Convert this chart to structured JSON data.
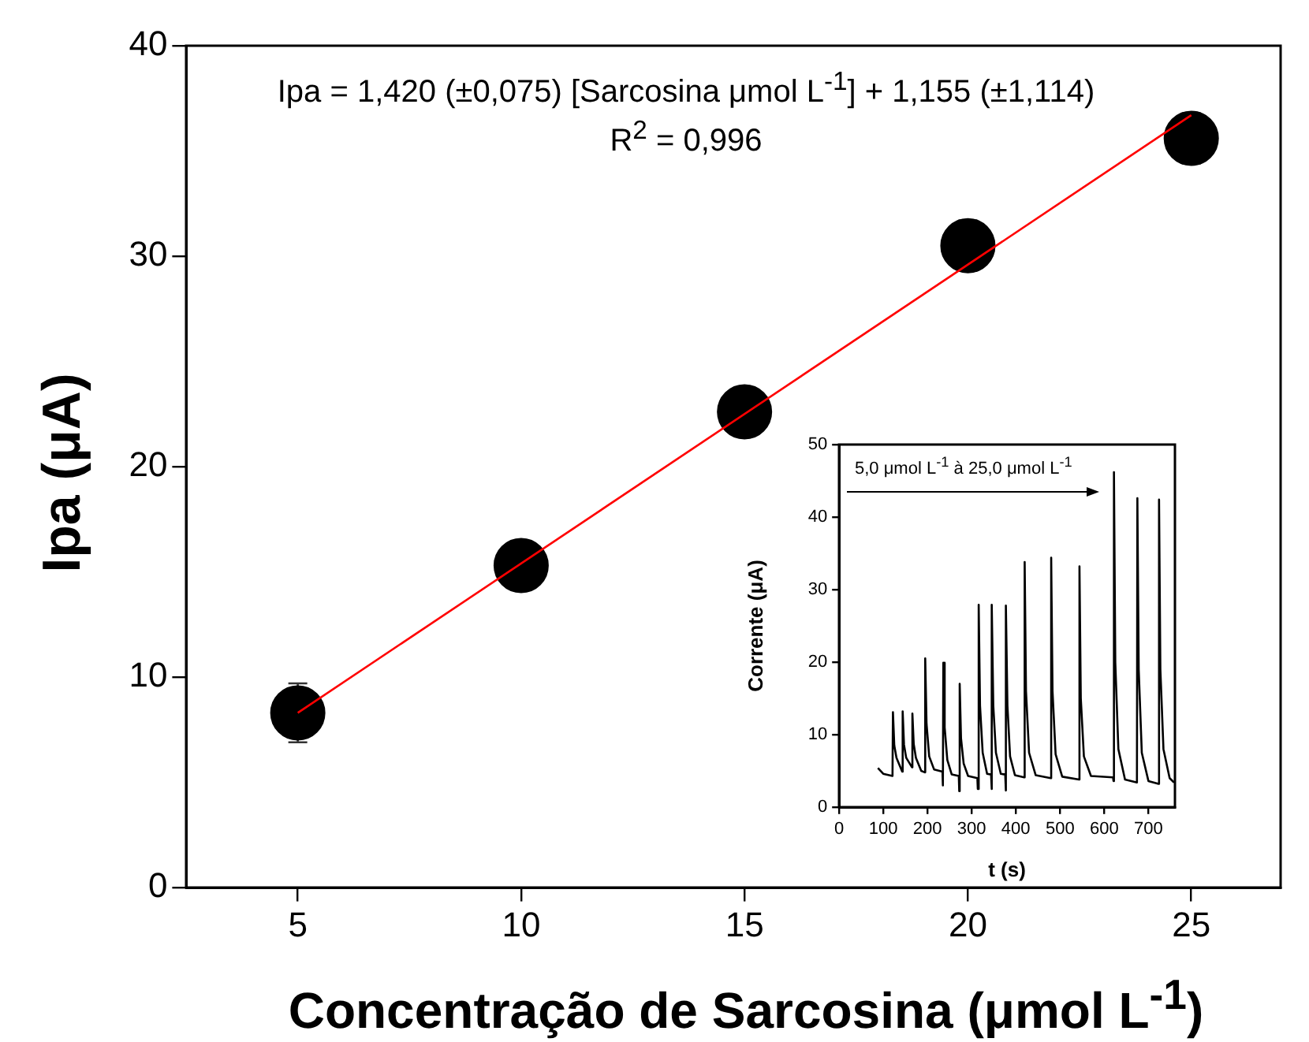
{
  "chart_data": [
    {
      "type": "scatter",
      "xlabel": "Concentração de Sarcosina (μmol L$^{-1}$)",
      "ylabel": "Ipa (μA)",
      "annotations": [
        "Ipa = 1,420 (±0,075) [Sarcosina μmol L$^{-1}$] + 1,155 (±1,114)",
        "R$^{2}$ = 0,996"
      ],
      "xlim": [
        2.5,
        27
      ],
      "ylim": [
        0,
        40
      ],
      "xticks": [
        5,
        10,
        15,
        20,
        25
      ],
      "yticks": [
        0,
        10,
        20,
        30,
        40
      ],
      "series": [
        {
          "color": "#000000",
          "marker": "circle",
          "x": [
            5,
            10,
            15,
            20,
            25
          ],
          "values": [
            8.3,
            15.3,
            22.6,
            30.5,
            35.6
          ],
          "errors": [
            1.4,
            null,
            0.8,
            1.2,
            1.2
          ]
        },
        {
          "type": "line",
          "color": "#ff0000",
          "x": [
            5,
            25
          ],
          "values": [
            8.3,
            36.7
          ]
        }
      ]
    },
    {
      "type": "line",
      "xlabel": "t (s)",
      "ylabel": "Corrente (μA)",
      "annotations": [
        "5,0 μmol L$^{-1}$ à 25,0 μmol L$^{-1}$"
      ],
      "xlim": [
        0,
        760
      ],
      "ylim": [
        0,
        50
      ],
      "xticks": [
        0,
        100,
        200,
        300,
        400,
        500,
        600,
        700
      ],
      "yticks": [
        0,
        10,
        20,
        30,
        40,
        50
      ],
      "series": [
        {
          "color": "#000000",
          "x": [
            88,
            100,
            121,
            122,
            125,
            130,
            143,
            144,
            147,
            152,
            165,
            166,
            169,
            174,
            186,
            194,
            195,
            198,
            204,
            215,
            234,
            235,
            236,
            239,
            245,
            255,
            271,
            272,
            273,
            276,
            282,
            292,
            313,
            314,
            316,
            319,
            325,
            335,
            344,
            345,
            346,
            349,
            355,
            366,
            376,
            377,
            378,
            381,
            387,
            398,
            419,
            420,
            423,
            430,
            445,
            479,
            480,
            483,
            490,
            505,
            543,
            544,
            547,
            554,
            570,
            620,
            621,
            622,
            625,
            632,
            647,
            674,
            675,
            678,
            685,
            700,
            723,
            724,
            727,
            734,
            748,
            758
          ],
          "values": [
            5.4,
            4.6,
            4.3,
            13.1,
            8.5,
            6.8,
            4.9,
            13.2,
            8.6,
            6.8,
            5.5,
            12.9,
            8.7,
            6.8,
            5.0,
            4.8,
            20.5,
            11.5,
            7.0,
            5.2,
            4.9,
            3.0,
            19.9,
            11,
            6.5,
            4.5,
            4.3,
            2.2,
            17.0,
            9.5,
            6.0,
            4.3,
            4.0,
            2.5,
            27.9,
            14,
            7.5,
            4.6,
            4.5,
            2.5,
            27.9,
            14,
            7.5,
            4.6,
            4.5,
            2.3,
            27.8,
            14,
            7.0,
            4.4,
            4.1,
            33.8,
            16,
            7.5,
            4.4,
            4.0,
            34.4,
            16,
            7.3,
            4.2,
            3.8,
            33.2,
            15,
            7.0,
            4.3,
            4.1,
            3.6,
            46.2,
            20,
            8.0,
            3.8,
            3.4,
            42.6,
            19,
            7.5,
            3.6,
            3.2,
            42.4,
            19,
            8,
            4.0,
            3.4
          ]
        }
      ]
    }
  ]
}
